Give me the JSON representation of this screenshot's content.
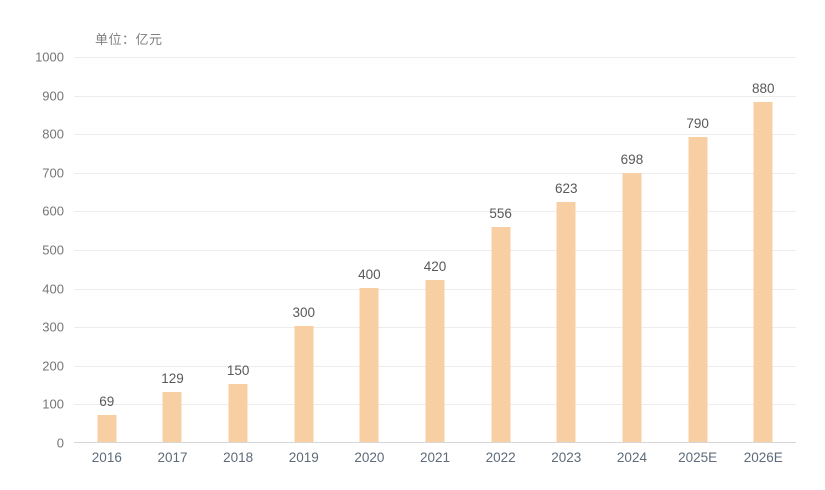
{
  "unit_label": "单位：亿元",
  "colors": {
    "bar": "#f8cfa2",
    "gridline": "#ececec",
    "axis_line": "#d6d6d6",
    "y_label": "#767676",
    "x_label": "#5d6b7a",
    "value_label": "#595959",
    "unit_label": "#808080",
    "background": "#ffffff"
  },
  "chart_data": {
    "type": "bar",
    "title": "",
    "subtitle": "单位：亿元",
    "categories": [
      "2016",
      "2017",
      "2018",
      "2019",
      "2020",
      "2021",
      "2022",
      "2023",
      "2024",
      "2025E",
      "2026E"
    ],
    "values": [
      69,
      129,
      150,
      300,
      400,
      420,
      556,
      623,
      698,
      790,
      880
    ],
    "xlabel": "",
    "ylabel": "",
    "ylim": [
      0,
      1000
    ],
    "y_tick_step": 100,
    "y_ticks": [
      0,
      100,
      200,
      300,
      400,
      500,
      600,
      700,
      800,
      900,
      1000
    ],
    "grid": "horizontal",
    "legend": "none",
    "bar_color": "#f8cfa2",
    "data_labels": "above-bars"
  }
}
